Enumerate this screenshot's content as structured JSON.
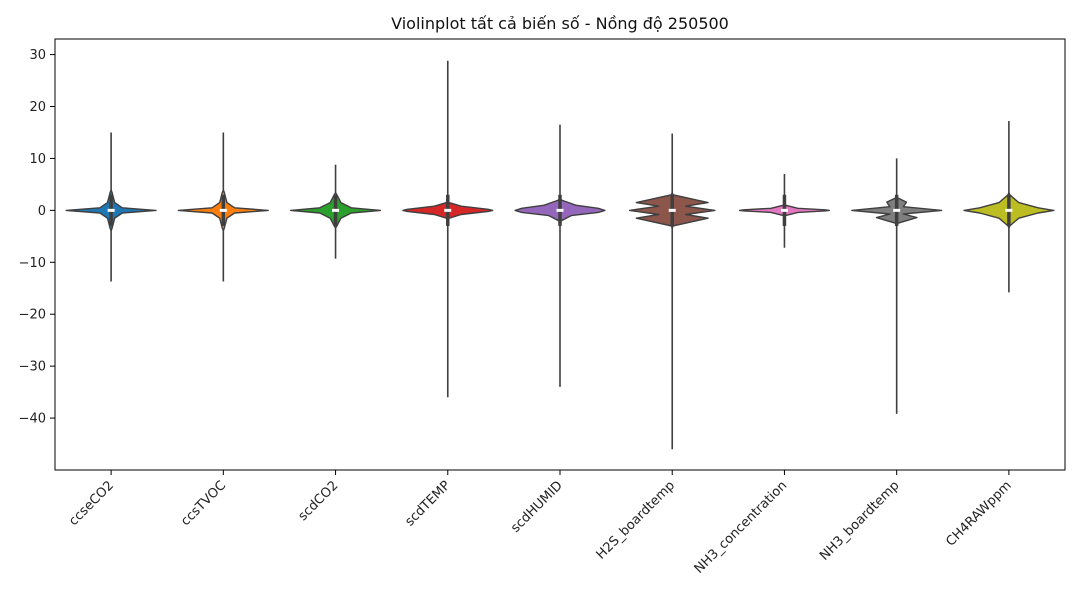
{
  "chart_data": {
    "type": "violin",
    "title": "Violinplot tất cả biến số - Nồng độ 250500",
    "xlabel": "",
    "ylabel": "",
    "ylim": [
      -50,
      33
    ],
    "yticks": [
      30,
      20,
      10,
      0,
      -10,
      -20,
      -30,
      -40
    ],
    "ytick_labels": [
      "30",
      "20",
      "10",
      "0",
      "−10",
      "−20",
      "−30",
      "−40"
    ],
    "grid": false,
    "legend": "none",
    "categories": [
      "ccseCO2",
      "ccsTVOC",
      "scdCO2",
      "scdTEMP",
      "scdHUMID",
      "H2S_boardtemp",
      "NH3_concentration",
      "NH3_boardtemp",
      "CH4RAWppm"
    ],
    "series": [
      {
        "category": "ccseCO2",
        "color": "#1f77b4",
        "min": -13.7,
        "max": 15.0,
        "q1": -0.3,
        "median": 0.0,
        "q3": 0.3,
        "profile": [
          [
            -3.5,
            0.02
          ],
          [
            -1.5,
            0.08
          ],
          [
            -0.5,
            0.25
          ],
          [
            0,
            1.0
          ],
          [
            0.5,
            0.25
          ],
          [
            1.5,
            0.08
          ],
          [
            3.5,
            0.02
          ]
        ]
      },
      {
        "category": "ccsTVOC",
        "color": "#ff7f0e",
        "min": -13.7,
        "max": 15.0,
        "q1": -0.3,
        "median": 0.0,
        "q3": 0.3,
        "profile": [
          [
            -3.5,
            0.02
          ],
          [
            -1.5,
            0.08
          ],
          [
            -0.5,
            0.25
          ],
          [
            0,
            1.0
          ],
          [
            0.5,
            0.25
          ],
          [
            1.5,
            0.08
          ],
          [
            3.5,
            0.02
          ]
        ]
      },
      {
        "category": "scdCO2",
        "color": "#2ca02c",
        "min": -9.3,
        "max": 8.8,
        "q1": -0.5,
        "median": 0.0,
        "q3": 0.5,
        "profile": [
          [
            -3.0,
            0.03
          ],
          [
            -1.5,
            0.12
          ],
          [
            -0.5,
            0.35
          ],
          [
            0,
            1.0
          ],
          [
            0.5,
            0.35
          ],
          [
            1.5,
            0.12
          ],
          [
            3.0,
            0.03
          ]
        ]
      },
      {
        "category": "scdTEMP",
        "color": "#d62728",
        "min": -36.0,
        "max": 28.8,
        "q1": -0.5,
        "median": 0.0,
        "q3": 0.5,
        "profile": [
          [
            -1.5,
            0.03
          ],
          [
            -0.8,
            0.3
          ],
          [
            -0.2,
            0.9
          ],
          [
            0,
            1.0
          ],
          [
            0.2,
            0.9
          ],
          [
            0.8,
            0.3
          ],
          [
            1.5,
            0.03
          ]
        ]
      },
      {
        "category": "scdHUMID",
        "color": "#9467bd",
        "min": -34.0,
        "max": 16.5,
        "q1": -0.5,
        "median": 0.0,
        "q3": 0.5,
        "profile": [
          [
            -2.0,
            0.03
          ],
          [
            -1.0,
            0.25
          ],
          [
            -0.4,
            0.85
          ],
          [
            0,
            1.0
          ],
          [
            0.4,
            0.85
          ],
          [
            1.0,
            0.35
          ],
          [
            2.0,
            0.03
          ]
        ]
      },
      {
        "category": "H2S_boardtemp",
        "color": "#8c564b",
        "min": -46.0,
        "max": 14.8,
        "q1": -0.8,
        "median": 0.0,
        "q3": 0.8,
        "profile": [
          [
            -3.0,
            0.02
          ],
          [
            -1.5,
            0.8
          ],
          [
            -0.8,
            0.3
          ],
          [
            0,
            0.95
          ],
          [
            0.8,
            0.3
          ],
          [
            1.5,
            0.8
          ],
          [
            3.0,
            0.02
          ]
        ]
      },
      {
        "category": "NH3_concentration",
        "color": "#e377c2",
        "min": -7.2,
        "max": 7.0,
        "q1": -0.2,
        "median": 0.0,
        "q3": 0.2,
        "profile": [
          [
            -1.0,
            0.02
          ],
          [
            -0.4,
            0.3
          ],
          [
            -0.1,
            0.9
          ],
          [
            0,
            1.0
          ],
          [
            0.1,
            0.9
          ],
          [
            0.4,
            0.3
          ],
          [
            1.0,
            0.02
          ]
        ]
      },
      {
        "category": "NH3_boardtemp",
        "color": "#7f7f7f",
        "min": -39.2,
        "max": 10.0,
        "q1": -0.8,
        "median": 0.0,
        "q3": 0.8,
        "profile": [
          [
            -2.5,
            0.02
          ],
          [
            -1.4,
            0.45
          ],
          [
            -0.7,
            0.15
          ],
          [
            0,
            1.0
          ],
          [
            0.7,
            0.15
          ],
          [
            1.6,
            0.22
          ],
          [
            2.4,
            0.02
          ]
        ]
      },
      {
        "category": "CH4RAWppm",
        "color": "#bcbd22",
        "min": -15.8,
        "max": 17.2,
        "q1": -0.8,
        "median": 0.0,
        "q3": 0.8,
        "profile": [
          [
            -3.0,
            0.02
          ],
          [
            -1.5,
            0.22
          ],
          [
            -0.5,
            0.65
          ],
          [
            0,
            1.0
          ],
          [
            0.5,
            0.65
          ],
          [
            1.5,
            0.22
          ],
          [
            3.0,
            0.02
          ]
        ]
      }
    ]
  }
}
